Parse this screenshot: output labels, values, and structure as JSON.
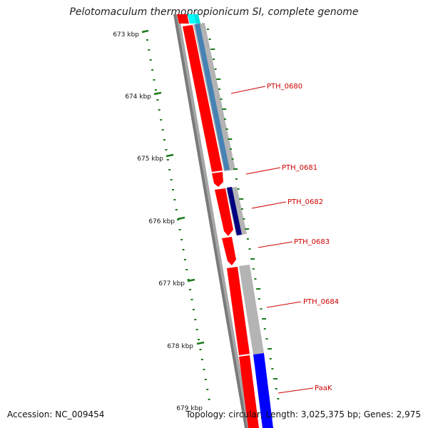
{
  "title": "Pelotomaculum thermopropionicum SI, complete genome",
  "axis_ticks": [
    "673 kbp",
    "674 kbp",
    "675 kbp",
    "676 kbp",
    "677 kbp",
    "678 kbp",
    "679 kbp"
  ],
  "genes": [
    {
      "label": "PTH_0680"
    },
    {
      "label": "PTH_0681"
    },
    {
      "label": "PTH_0682"
    },
    {
      "label": "PTH_0683"
    },
    {
      "label": "PTH_0684"
    },
    {
      "label": "PaaK"
    }
  ],
  "footer": {
    "accession": "Accession: NC_009454",
    "summary": "Topology: circular; Length: 3,025,375 bp; Genes: 2,975"
  },
  "colors": {
    "cds": "#ff0000",
    "label": "#cc0000",
    "backbone": "#808080",
    "gc_skew": "#1a7a1a",
    "blast_light": "#b4b4b4",
    "blast_mid": "#4682b4",
    "blast_dark": "#000080",
    "blast_strong": "#0000ff",
    "blast_cyan": "#00ffff"
  }
}
